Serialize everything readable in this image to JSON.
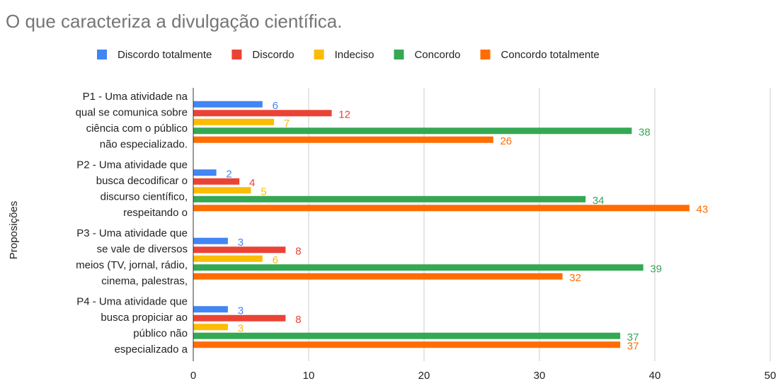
{
  "chart_data": {
    "type": "hbar",
    "title": "O que caracteriza a divulgação científica.",
    "y_label": "Proposições",
    "categories": [
      [
        "P1 - Uma atividade na",
        "qual se comunica sobre",
        "ciência com o público",
        "não especializado."
      ],
      [
        "P2 - Uma atividade que",
        "busca decodificar o",
        "discurso científico,",
        "respeitando o"
      ],
      [
        "P3 - Uma atividade que",
        "se vale de diversos",
        "meios (TV, jornal, rádio,",
        "cinema, palestras,"
      ],
      [
        "P4 - Uma atividade que",
        "busca propiciar ao",
        "público não",
        "especializado a"
      ]
    ],
    "series": [
      {
        "name": "Discordo totalmente",
        "color": "#4285f4",
        "values": [
          6,
          2,
          3,
          3
        ]
      },
      {
        "name": "Discordo",
        "color": "#ea4335",
        "values": [
          12,
          4,
          8,
          8
        ]
      },
      {
        "name": "Indeciso",
        "color": "#fbbc04",
        "values": [
          7,
          5,
          6,
          3
        ]
      },
      {
        "name": "Concordo",
        "color": "#34a853",
        "values": [
          38,
          34,
          39,
          37
        ]
      },
      {
        "name": "Concordo totalmente",
        "color": "#ff6d01",
        "values": [
          26,
          43,
          32,
          37
        ]
      }
    ],
    "xlim": [
      0,
      50
    ],
    "xticks": [
      0,
      10,
      20,
      30,
      40,
      50
    ],
    "grid": true,
    "legend": "top"
  }
}
